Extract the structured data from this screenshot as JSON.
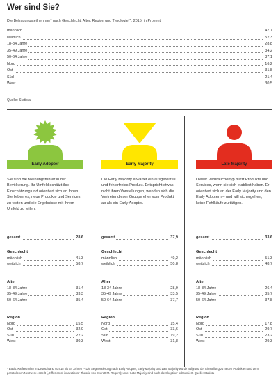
{
  "title": "Wer sind Sie?",
  "subtitle": "Die Befragungsteilnehmer* nach Geschlecht, Alter, Region und Typologie**; 2015; in Prozent",
  "source": "Quelle: Statista",
  "footnote": "* Basis: Kaffeetrinker in Deutschland von 18 bis 64 Jahren ** Die Segmentierung nach Early Adopter, Early Majority und Late Majority wurde aufgrund der Einstellung zu neuen Produkten und dem persönlichen Netzwerk erstellt („Diffusion of innovations“-Theorie von Everett M. Rogers); unter Late Majority sind auch die Skeptiker subsumiert. Quelle: Statista",
  "colors": {
    "early_adopter": "#8cc63f",
    "early_majority": "#ffe600",
    "late_majority": "#e32d1f"
  },
  "chart_data": [
    {
      "type": "table",
      "rows": [
        {
          "label": "männlich",
          "value": "47,7"
        },
        {
          "label": "weiblich",
          "value": "52,3"
        },
        {
          "label": "18-34 Jahre",
          "value": "28,8"
        },
        {
          "label": "35-49 Jahre",
          "value": "34,2"
        },
        {
          "label": "50-64 Jahre",
          "value": "37,1"
        },
        {
          "label": "Nord",
          "value": "16,2"
        },
        {
          "label": "Ost",
          "value": "31,8"
        },
        {
          "label": "Süd",
          "value": "21,4"
        },
        {
          "label": "West",
          "value": "30,5"
        }
      ]
    },
    {
      "type": "table",
      "segments": [
        {
          "name": "Early Adopter",
          "icon": "person-sun-icon",
          "description": "Sie sind die Meinungsführer in der Bevölkerung. Ihr Umfeld schätzt ihre Einschätzung und orientiert sich an ihnen. Sie lieben es, neue Produkte und Services zu testen und die Ergebnisse mit ihrem Umfeld zu teilen.",
          "total_label": "gesamt",
          "total": "28,6",
          "groups": [
            {
              "heading": "Geschlecht",
              "rows": [
                {
                  "label": "männlich",
                  "value": "41,3"
                },
                {
                  "label": "weiblich",
                  "value": "58,7"
                }
              ]
            },
            {
              "heading": "Alter",
              "rows": [
                {
                  "label": "18-34 Jahre",
                  "value": "31,4"
                },
                {
                  "label": "35-49 Jahre",
                  "value": "33,3"
                },
                {
                  "label": "50-64 Jahre",
                  "value": "35,4"
                }
              ]
            },
            {
              "heading": "Region",
              "rows": [
                {
                  "label": "Nord",
                  "value": "15,5"
                },
                {
                  "label": "Ost",
                  "value": "32,0"
                },
                {
                  "label": "Süd",
                  "value": "22,2"
                },
                {
                  "label": "West",
                  "value": "30,3"
                }
              ]
            }
          ]
        },
        {
          "name": "Early Majority",
          "icon": "person-funnel-icon",
          "description": "Die Early Majority erwartet ein ausgereiftes und fehlerfreies Produkt. Entspricht etwas nicht ihren Vorstellungen, wenden sich die Vertreter dieser Gruppe eher vom Produkt ab als ein Early Adopter.",
          "total_label": "gesamt",
          "total": "37,9",
          "groups": [
            {
              "heading": "Geschlecht",
              "rows": [
                {
                  "label": "männlich",
                  "value": "49,2"
                },
                {
                  "label": "weiblich",
                  "value": "50,8"
                }
              ]
            },
            {
              "heading": "Alter",
              "rows": [
                {
                  "label": "18-34 Jahre",
                  "value": "28,9"
                },
                {
                  "label": "35-49 Jahre",
                  "value": "33,5"
                },
                {
                  "label": "50-64 Jahre",
                  "value": "37,7"
                }
              ]
            },
            {
              "heading": "Region",
              "rows": [
                {
                  "label": "Nord",
                  "value": "15,4"
                },
                {
                  "label": "Ost",
                  "value": "33,6"
                },
                {
                  "label": "Süd",
                  "value": "19,2"
                },
                {
                  "label": "West",
                  "value": "31,8"
                }
              ]
            }
          ]
        },
        {
          "name": "Late Majority",
          "icon": "person-icon",
          "description": "Dieser Verbrauchertyp nutzt Produkte und Services, wenn sie sich etabliert haben. Er orientiert sich an der Early Majority und den Early Adoptern – und will sichergehen, keine Fehlkäufe zu tätigen.",
          "total_label": "gesamt",
          "total": "33,6",
          "groups": [
            {
              "heading": "Geschlecht",
              "rows": [
                {
                  "label": "männlich",
                  "value": "51,3"
                },
                {
                  "label": "weiblich",
                  "value": "48,7"
                }
              ]
            },
            {
              "heading": "Alter",
              "rows": [
                {
                  "label": "18-34 Jahre",
                  "value": "26,4"
                },
                {
                  "label": "35-49 Jahre",
                  "value": "35,7"
                },
                {
                  "label": "50-64 Jahre",
                  "value": "37,8"
                }
              ]
            },
            {
              "heading": "Region",
              "rows": [
                {
                  "label": "Nord",
                  "value": "17,8"
                },
                {
                  "label": "Ost",
                  "value": "29,7"
                },
                {
                  "label": "Süd",
                  "value": "23,2"
                },
                {
                  "label": "West",
                  "value": "29,3"
                }
              ]
            }
          ]
        }
      ]
    }
  ]
}
